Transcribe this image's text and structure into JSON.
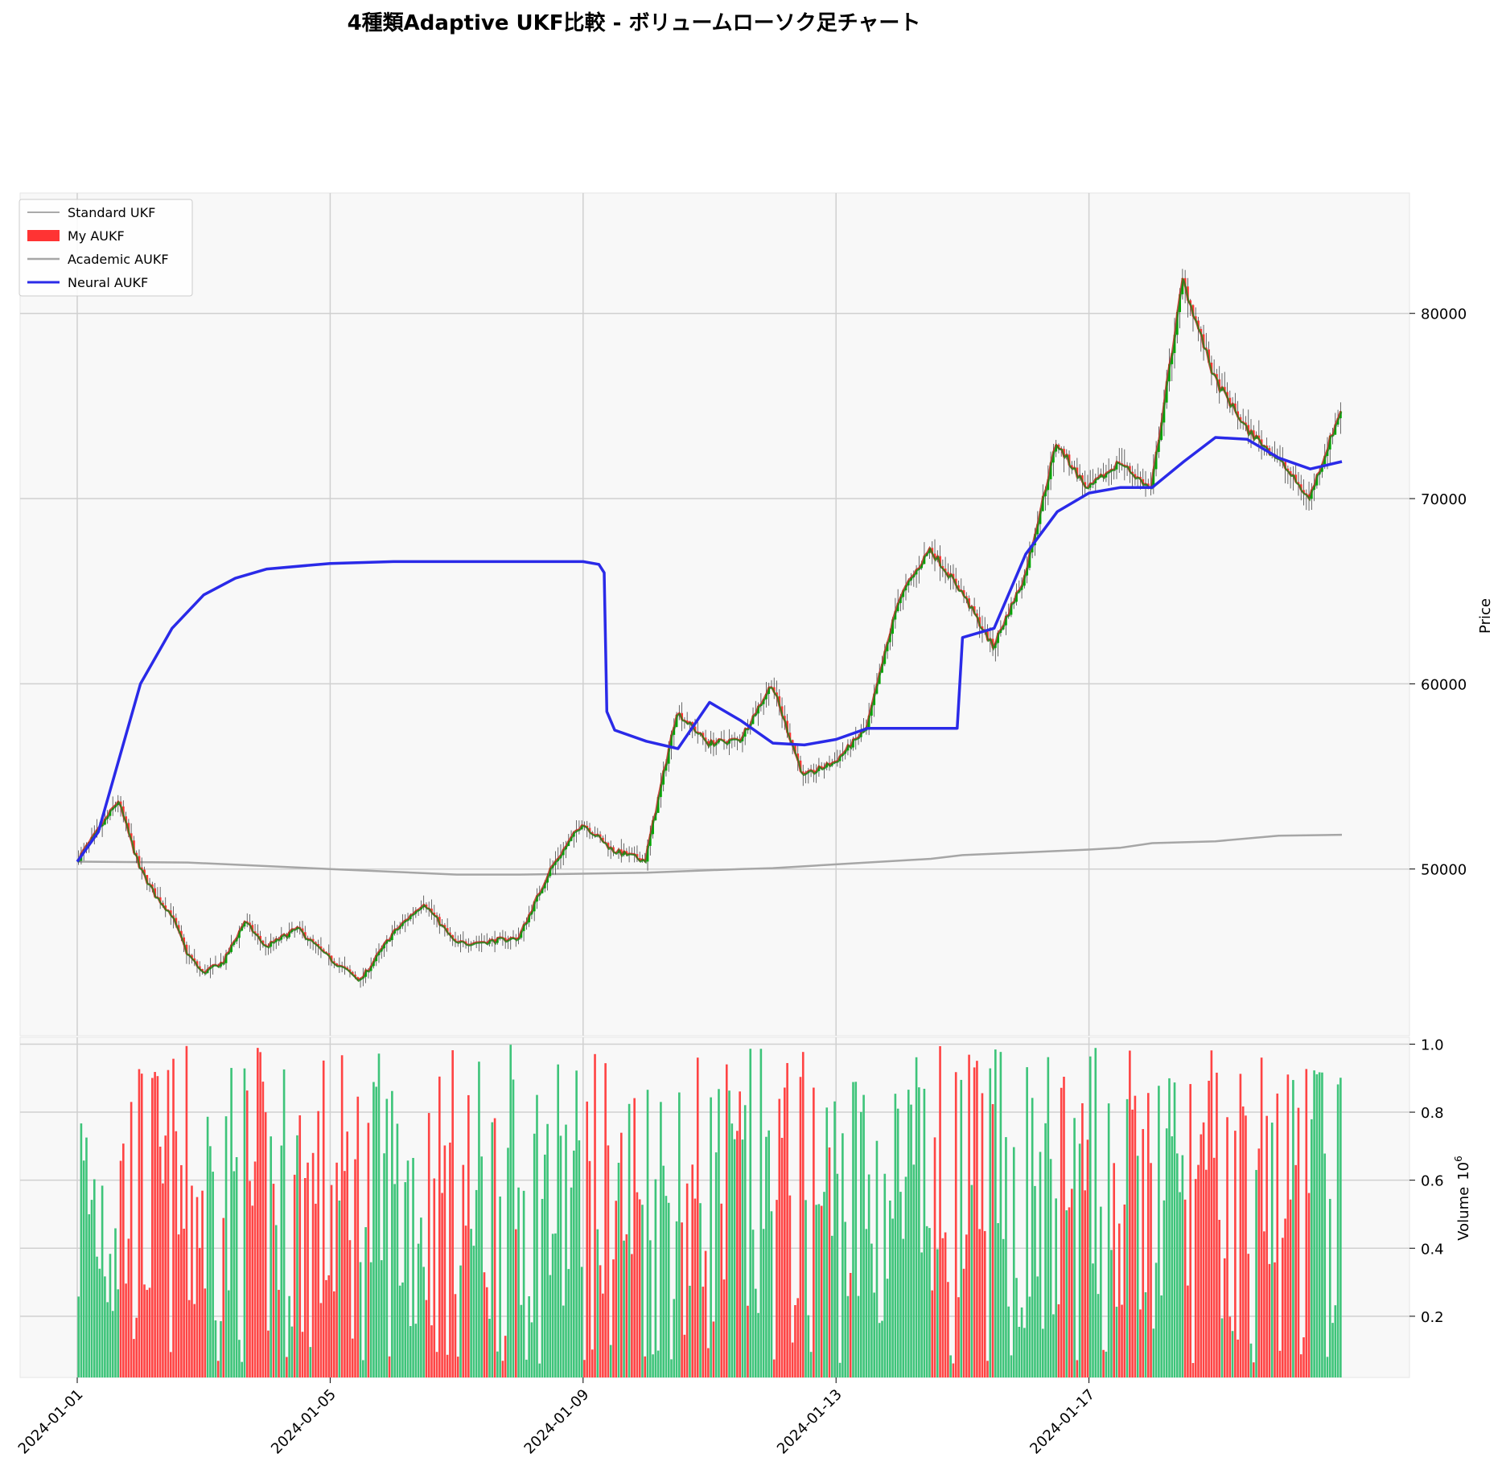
{
  "title": "4種類Adaptive UKF比較 - ボリュームローソク足チャート",
  "chart_data": [
    {
      "type": "line",
      "role": "price-panel",
      "ylabel": "Price",
      "ylim": [
        41000,
        86500
      ],
      "yticks": [
        50000,
        60000,
        70000,
        80000
      ],
      "x_range": [
        "2024-01-01",
        "2024-01-21"
      ],
      "xticks": [
        "2024-01-01",
        "2024-01-05",
        "2024-01-09",
        "2024-01-13",
        "2024-01-17"
      ],
      "grid": true,
      "legend_position": "upper-left",
      "candle_colors": {
        "up": "#00aa00",
        "down": "#ff3333",
        "wick": "#444444"
      },
      "series": [
        {
          "name": "Standard UKF",
          "color": "#555555",
          "style": "thin-wick",
          "x": [
            "2024-01-01",
            "2024-01-01 08:00",
            "2024-01-01 16:00",
            "2024-01-02",
            "2024-01-02 06:00",
            "2024-01-02 12:00",
            "2024-01-02 18:00",
            "2024-01-03",
            "2024-01-03 08:00",
            "2024-01-03 16:00",
            "2024-01-04",
            "2024-01-04 12:00",
            "2024-01-05",
            "2024-01-05 12:00",
            "2024-01-06",
            "2024-01-06 12:00",
            "2024-01-07",
            "2024-01-07 12:00",
            "2024-01-08",
            "2024-01-08 12:00",
            "2024-01-09",
            "2024-01-09 12:00",
            "2024-01-10",
            "2024-01-10 12:00",
            "2024-01-11",
            "2024-01-11 12:00",
            "2024-01-12",
            "2024-01-12 12:00",
            "2024-01-13",
            "2024-01-13 12:00",
            "2024-01-14",
            "2024-01-14 12:00",
            "2024-01-15",
            "2024-01-15 12:00",
            "2024-01-16",
            "2024-01-16 12:00",
            "2024-01-17",
            "2024-01-17 12:00",
            "2024-01-18",
            "2024-01-18 12:00",
            "2024-01-19",
            "2024-01-19 12:00",
            "2024-01-20",
            "2024-01-20 12:00",
            "2024-01-21"
          ],
          "values": [
            50400,
            52000,
            53700,
            50100,
            48600,
            47600,
            45500,
            44400,
            45000,
            47200,
            45800,
            46800,
            45200,
            44000,
            46500,
            48200,
            46000,
            46100,
            46300,
            50000,
            52500,
            51000,
            50500,
            58500,
            56800,
            57000,
            60000,
            55000,
            55800,
            57600,
            64500,
            67300,
            65000,
            62000,
            65800,
            73000,
            70500,
            72000,
            70500,
            81800,
            76500,
            73800,
            72200,
            70000,
            74800
          ]
        },
        {
          "name": "My AUKF",
          "color": "#ff3333",
          "x": [
            "2024-01-01",
            "2024-01-01 08:00",
            "2024-01-01 16:00",
            "2024-01-02",
            "2024-01-02 06:00",
            "2024-01-02 12:00",
            "2024-01-02 18:00",
            "2024-01-03",
            "2024-01-03 08:00",
            "2024-01-03 16:00",
            "2024-01-04",
            "2024-01-04 12:00",
            "2024-01-05",
            "2024-01-05 12:00",
            "2024-01-06",
            "2024-01-06 12:00",
            "2024-01-07",
            "2024-01-07 12:00",
            "2024-01-08",
            "2024-01-08 12:00",
            "2024-01-09",
            "2024-01-09 12:00",
            "2024-01-10",
            "2024-01-10 12:00",
            "2024-01-11",
            "2024-01-11 12:00",
            "2024-01-12",
            "2024-01-12 12:00",
            "2024-01-13",
            "2024-01-13 12:00",
            "2024-01-14",
            "2024-01-14 12:00",
            "2024-01-15",
            "2024-01-15 12:00",
            "2024-01-16",
            "2024-01-16 12:00",
            "2024-01-17",
            "2024-01-17 12:00",
            "2024-01-18",
            "2024-01-18 12:00",
            "2024-01-19",
            "2024-01-19 12:00",
            "2024-01-20",
            "2024-01-20 12:00",
            "2024-01-21"
          ],
          "values": [
            50400,
            52000,
            53700,
            50100,
            48600,
            47600,
            45500,
            44400,
            45000,
            47200,
            45800,
            46800,
            45200,
            44000,
            46500,
            48200,
            46000,
            46100,
            46300,
            50000,
            52500,
            51000,
            50500,
            58500,
            56800,
            57000,
            60000,
            55000,
            55800,
            57600,
            64500,
            67300,
            65000,
            62000,
            65800,
            73000,
            70500,
            72000,
            70500,
            81800,
            76500,
            73800,
            72200,
            70000,
            74800
          ]
        },
        {
          "name": "Academic AUKF",
          "color": "#a6a6a6",
          "x": [
            "2024-01-01",
            "2024-01-02 18:00",
            "2024-01-05",
            "2024-01-07",
            "2024-01-08",
            "2024-01-09",
            "2024-01-10",
            "2024-01-11 12:00",
            "2024-01-12",
            "2024-01-13",
            "2024-01-14 12:00",
            "2024-01-15",
            "2024-01-16",
            "2024-01-17",
            "2024-01-17 12:00",
            "2024-01-18",
            "2024-01-19",
            "2024-01-20",
            "2024-01-21"
          ],
          "values": [
            50400,
            50350,
            50000,
            49700,
            49700,
            49750,
            49800,
            50000,
            50050,
            50250,
            50550,
            50750,
            50900,
            51050,
            51150,
            51400,
            51500,
            51800,
            51850
          ]
        },
        {
          "name": "Neural AUKF",
          "color": "#2a2ae8",
          "x": [
            "2024-01-01",
            "2024-01-01 08:00",
            "2024-01-01 16:00",
            "2024-01-02",
            "2024-01-02 12:00",
            "2024-01-03",
            "2024-01-03 12:00",
            "2024-01-04",
            "2024-01-05",
            "2024-01-06",
            "2024-01-07",
            "2024-01-08",
            "2024-01-09",
            "2024-01-09 06:00",
            "2024-01-09 08:00",
            "2024-01-09 09:00",
            "2024-01-09 12:00",
            "2024-01-10",
            "2024-01-10 12:00",
            "2024-01-11",
            "2024-01-11 12:00",
            "2024-01-12",
            "2024-01-12 12:00",
            "2024-01-13",
            "2024-01-13 12:00",
            "2024-01-14",
            "2024-01-14 12:00",
            "2024-01-14 22:00",
            "2024-01-15",
            "2024-01-15 12:00",
            "2024-01-16",
            "2024-01-16 12:00",
            "2024-01-17",
            "2024-01-17 12:00",
            "2024-01-18",
            "2024-01-18 12:00",
            "2024-01-19",
            "2024-01-19 12:00",
            "2024-01-20",
            "2024-01-20 12:00",
            "2024-01-21"
          ],
          "values": [
            50400,
            52000,
            56000,
            60000,
            63000,
            64800,
            65700,
            66200,
            66500,
            66600,
            66600,
            66600,
            66600,
            66450,
            66000,
            58500,
            57500,
            56900,
            56500,
            59000,
            58000,
            56800,
            56700,
            57000,
            57600,
            57600,
            57600,
            57600,
            62500,
            63000,
            67000,
            69300,
            70300,
            70600,
            70600,
            72000,
            73300,
            73200,
            72200,
            71600,
            72000
          ]
        }
      ]
    },
    {
      "type": "bar",
      "role": "volume-panel",
      "ylabel": "Volume",
      "y_multiplier_label": "10",
      "y_multiplier_exp": "6",
      "ylim": [
        0.02,
        1.0
      ],
      "yticks": [
        "0.2",
        "0.4",
        "0.6",
        "0.8",
        "1.0"
      ],
      "grid": true,
      "colors": {
        "up": "#3ec47a",
        "down": "#ff4444"
      },
      "note_series": "volume bars alternate up/down with the candles"
    }
  ],
  "legend": {
    "standard": "Standard UKF",
    "my": "My AUKF",
    "academic": "Academic AUKF",
    "neural": "Neural AUKF"
  }
}
